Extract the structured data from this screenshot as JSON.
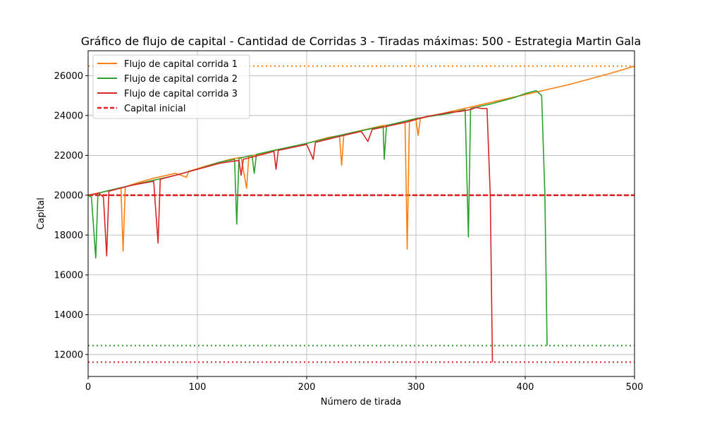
{
  "chart_data": {
    "type": "line",
    "title": "Gráfico de flujo de capital - Cantidad de Corridas 3 - Tiradas máximas: 500 - Estrategia Martin Gala",
    "xlabel": "Número de tirada",
    "ylabel": "Capital",
    "xlim": [
      0,
      500
    ],
    "ylim": [
      10900,
      27250
    ],
    "xticks": [
      0,
      100,
      200,
      300,
      400,
      500
    ],
    "yticks": [
      12000,
      14000,
      16000,
      18000,
      20000,
      22000,
      24000,
      26000
    ],
    "grid": true,
    "legend_position": "upper-left",
    "series": [
      {
        "name": "Flujo de capital corrida 1",
        "color": "#ff7f0e",
        "final_line": 26480,
        "points": [
          [
            0,
            20000
          ],
          [
            10,
            20120
          ],
          [
            20,
            20230
          ],
          [
            30,
            20380
          ],
          [
            32,
            17200
          ],
          [
            34,
            20420
          ],
          [
            45,
            20620
          ],
          [
            60,
            20850
          ],
          [
            80,
            21100
          ],
          [
            90,
            20900
          ],
          [
            92,
            21200
          ],
          [
            110,
            21500
          ],
          [
            130,
            21800
          ],
          [
            140,
            21900
          ],
          [
            145,
            20350
          ],
          [
            147,
            21950
          ],
          [
            160,
            22100
          ],
          [
            180,
            22350
          ],
          [
            200,
            22600
          ],
          [
            220,
            22900
          ],
          [
            230,
            23000
          ],
          [
            232,
            21500
          ],
          [
            234,
            23050
          ],
          [
            250,
            23250
          ],
          [
            270,
            23500
          ],
          [
            280,
            23550
          ],
          [
            290,
            23700
          ],
          [
            292,
            17300
          ],
          [
            294,
            23700
          ],
          [
            300,
            23800
          ],
          [
            302,
            23000
          ],
          [
            304,
            23850
          ],
          [
            320,
            24050
          ],
          [
            340,
            24300
          ],
          [
            360,
            24550
          ],
          [
            380,
            24800
          ],
          [
            400,
            25050
          ],
          [
            420,
            25300
          ],
          [
            440,
            25550
          ],
          [
            460,
            25850
          ],
          [
            480,
            26150
          ],
          [
            500,
            26480
          ]
        ]
      },
      {
        "name": "Flujo de capital corrida 2",
        "color": "#2ca02c",
        "final_line": 12450,
        "points": [
          [
            0,
            20000
          ],
          [
            3,
            19900
          ],
          [
            7,
            16850
          ],
          [
            9,
            20100
          ],
          [
            20,
            20250
          ],
          [
            40,
            20500
          ],
          [
            60,
            20750
          ],
          [
            80,
            21000
          ],
          [
            100,
            21300
          ],
          [
            120,
            21650
          ],
          [
            134,
            21800
          ],
          [
            136,
            18550
          ],
          [
            138,
            21850
          ],
          [
            150,
            22000
          ],
          [
            152,
            21100
          ],
          [
            154,
            22050
          ],
          [
            170,
            22250
          ],
          [
            200,
            22600
          ],
          [
            230,
            23000
          ],
          [
            260,
            23350
          ],
          [
            270,
            23450
          ],
          [
            271,
            21800
          ],
          [
            273,
            23500
          ],
          [
            300,
            23850
          ],
          [
            330,
            24100
          ],
          [
            345,
            24300
          ],
          [
            348,
            17900
          ],
          [
            350,
            24350
          ],
          [
            370,
            24600
          ],
          [
            390,
            24900
          ],
          [
            400,
            25100
          ],
          [
            410,
            25250
          ],
          [
            415,
            25000
          ],
          [
            418,
            20000
          ],
          [
            420,
            12450
          ]
        ]
      },
      {
        "name": "Flujo de capital corrida 3",
        "color": "#d62728",
        "final_line": 11620,
        "points": [
          [
            0,
            20000
          ],
          [
            10,
            20100
          ],
          [
            14,
            19900
          ],
          [
            17,
            16950
          ],
          [
            19,
            20200
          ],
          [
            40,
            20500
          ],
          [
            60,
            20700
          ],
          [
            64,
            17600
          ],
          [
            66,
            20800
          ],
          [
            90,
            21150
          ],
          [
            120,
            21600
          ],
          [
            138,
            21750
          ],
          [
            140,
            21000
          ],
          [
            142,
            21800
          ],
          [
            160,
            22050
          ],
          [
            170,
            22200
          ],
          [
            172,
            21300
          ],
          [
            174,
            22250
          ],
          [
            200,
            22550
          ],
          [
            206,
            21800
          ],
          [
            208,
            22650
          ],
          [
            230,
            22950
          ],
          [
            250,
            23200
          ],
          [
            256,
            22700
          ],
          [
            260,
            23300
          ],
          [
            290,
            23650
          ],
          [
            310,
            23950
          ],
          [
            330,
            24150
          ],
          [
            340,
            24200
          ],
          [
            350,
            24300
          ],
          [
            355,
            24400
          ],
          [
            360,
            24350
          ],
          [
            365,
            24350
          ],
          [
            368,
            20000
          ],
          [
            370,
            11620
          ]
        ]
      }
    ],
    "reference_lines": [
      {
        "name": "Capital inicial",
        "value": 20000,
        "color": "#e41a1c",
        "style": "dashed"
      }
    ]
  }
}
